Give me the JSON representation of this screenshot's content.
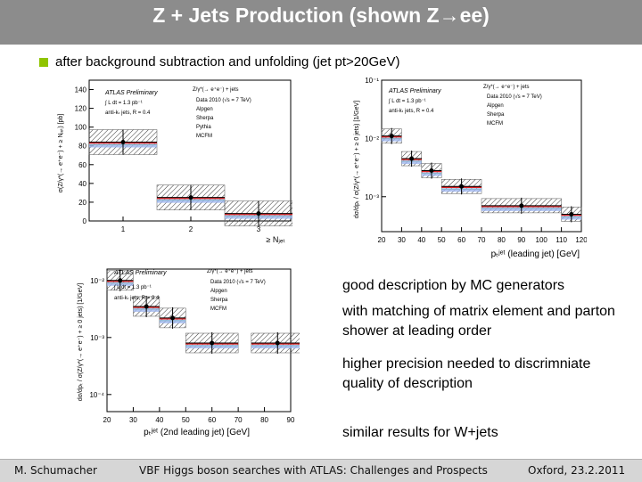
{
  "slide": {
    "title": "Z + Jets Production (shown Z→ee)",
    "bullet": "after background subtraction and unfolding (jet pt>20GeV)",
    "bullet_color": "#8fc400"
  },
  "text_blocks": [
    "good description by MC generators",
    "with matching of  matrix element and parton shower  at leading order",
    "higher precision needed to discrimniate quality of description",
    "similar results for W+jets"
  ],
  "footer": {
    "left": "M. Schumacher",
    "center": "VBF Higgs boson searches with ATLAS: Challenges and Prospects",
    "right": "Oxford, 23.2.2011"
  },
  "plot_labels": {
    "atlas": "ATLAS Preliminary",
    "lumi": "∫ L dt = 1.3 pb⁻¹",
    "algo": "anti-kₜ jets, R = 0.4",
    "legend_title": "Z/γ*(→ e⁺e⁻) + jets",
    "legend": [
      "Data 2010 (√s = 7 TeV)",
      "Alpgen",
      "Sherpa",
      "Pythia",
      "MCFM"
    ]
  },
  "chart_data": [
    {
      "type": "scatter",
      "ylabel": "σ(Z/γ*(→ e⁺e⁻) + ≥ Nⱼₑₜ) [pb]",
      "xlabel": "≥ Nⱼₑₜ",
      "xticks": [
        "1",
        "2",
        "3"
      ],
      "yticks": [
        "0",
        "20",
        "40",
        "60",
        "80",
        "100",
        "120",
        "140"
      ],
      "ylim": [
        0,
        150
      ],
      "x": [
        1,
        2,
        3
      ],
      "values": [
        84,
        25,
        8
      ]
    },
    {
      "type": "scatter",
      "ylabel": "dσ/dpₜ / σ(Z/γ*(→ e⁺e⁻) + ≥ 0 jets) [1/GeV]",
      "xlabel": "pₜʲᵉᵗ (leading jet) [GeV]",
      "xticks": [
        "20",
        "30",
        "40",
        "50",
        "60",
        "70",
        "80",
        "90",
        "100",
        "110",
        "120"
      ],
      "yticks": [
        "10⁻¹",
        "10⁻²",
        "10⁻³"
      ],
      "log_y": true,
      "x": [
        25,
        35,
        45,
        60,
        90,
        115
      ],
      "values": [
        0.011,
        0.0045,
        0.0028,
        0.0015,
        0.0007,
        0.0005
      ]
    },
    {
      "type": "scatter",
      "ylabel": "dσ/dpₜ / σ(Z/γ*(→ e⁺e⁻) + ≥ 0 jets) [1/GeV]",
      "xlabel": "pₜʲᵉᵗ (2nd leading jet) [GeV]",
      "xticks": [
        "20",
        "30",
        "40",
        "50",
        "60",
        "70",
        "80",
        "90"
      ],
      "yticks": [
        "10⁻²",
        "10⁻³",
        "10⁻⁴"
      ],
      "log_y": true,
      "x": [
        25,
        35,
        45,
        60,
        85
      ],
      "values": [
        0.01,
        0.0035,
        0.0022,
        0.0008,
        0.0008
      ]
    }
  ]
}
